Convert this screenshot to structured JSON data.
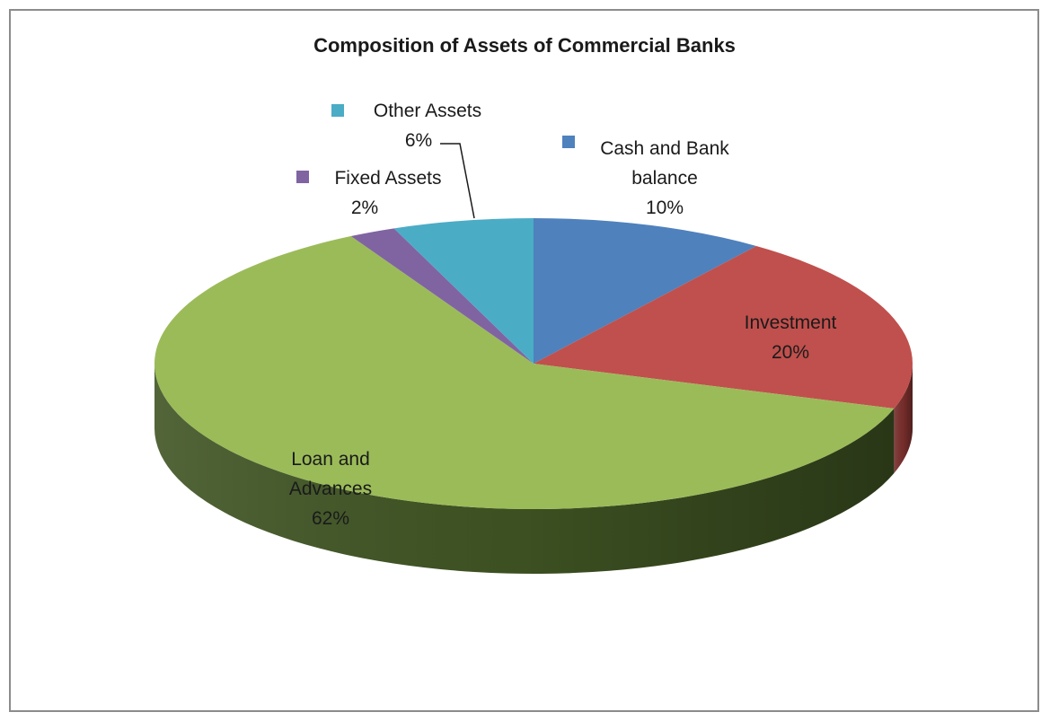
{
  "chart_data": {
    "type": "pie",
    "title": "Composition of Assets of Commercial Banks",
    "slices": [
      {
        "name": "Cash and Bank balance",
        "value": 10,
        "label": [
          "Cash and Bank",
          "balance",
          "10%"
        ],
        "color": "#4F81BD",
        "dark": "#2f4f7a",
        "legend": true
      },
      {
        "name": "Investment",
        "value": 20,
        "label": [
          "Investment",
          "20%"
        ],
        "color": "#C0504D",
        "dark": "#7a2f2d",
        "legend": false
      },
      {
        "name": "Loan and Advances",
        "value": 62,
        "label": [
          "Loan and",
          "Advances",
          "62%"
        ],
        "color": "#9BBB59",
        "dark": "#3f5423",
        "legend": false
      },
      {
        "name": "Fixed Assets",
        "value": 2,
        "label": [
          "Fixed Assets",
          "2%"
        ],
        "color": "#8064A2",
        "dark": "#4e3a66",
        "legend": true
      },
      {
        "name": "Other Assets",
        "value": 6,
        "label": [
          "Other Assets",
          "6%"
        ],
        "color": "#4BACC6",
        "dark": "#2a6e80",
        "legend": true
      }
    ]
  }
}
